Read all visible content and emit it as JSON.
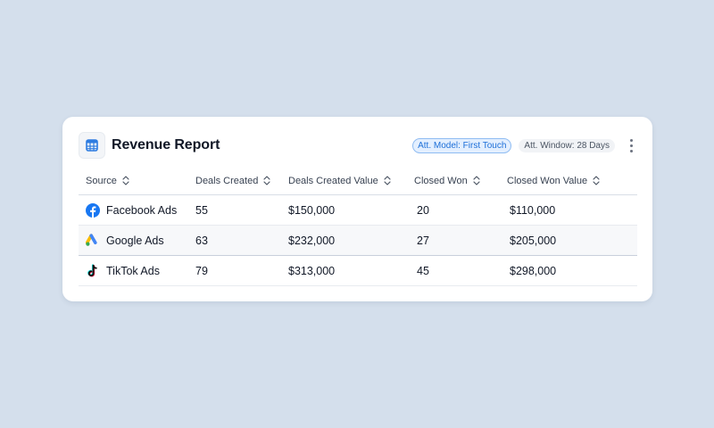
{
  "header": {
    "title": "Revenue Report",
    "icon": "spreadsheet-icon",
    "badge_model": "Att. Model: First Touch",
    "badge_window": "Att. Window: 28 Days"
  },
  "colors": {
    "background": "#d4dfec",
    "badge_blue": "#1d6fd8",
    "facebook": "#1877f2",
    "icon_blue": "#2f7de1"
  },
  "table": {
    "columns": [
      "Source",
      "Deals Created",
      "Deals Created Value",
      "Closed Won",
      "Closed Won Value"
    ],
    "rows": [
      {
        "source": "Facebook Ads",
        "icon": "facebook-icon",
        "deals_created": "55",
        "deals_created_value": "$150,000",
        "closed_won": "20",
        "closed_won_value": "$110,000"
      },
      {
        "source": "Google Ads",
        "icon": "google-ads-icon",
        "deals_created": "63",
        "deals_created_value": "$232,000",
        "closed_won": "27",
        "closed_won_value": "$205,000"
      },
      {
        "source": "TikTok Ads",
        "icon": "tiktok-icon",
        "deals_created": "79",
        "deals_created_value": "$313,000",
        "closed_won": "45",
        "closed_won_value": "$298,000"
      }
    ]
  }
}
